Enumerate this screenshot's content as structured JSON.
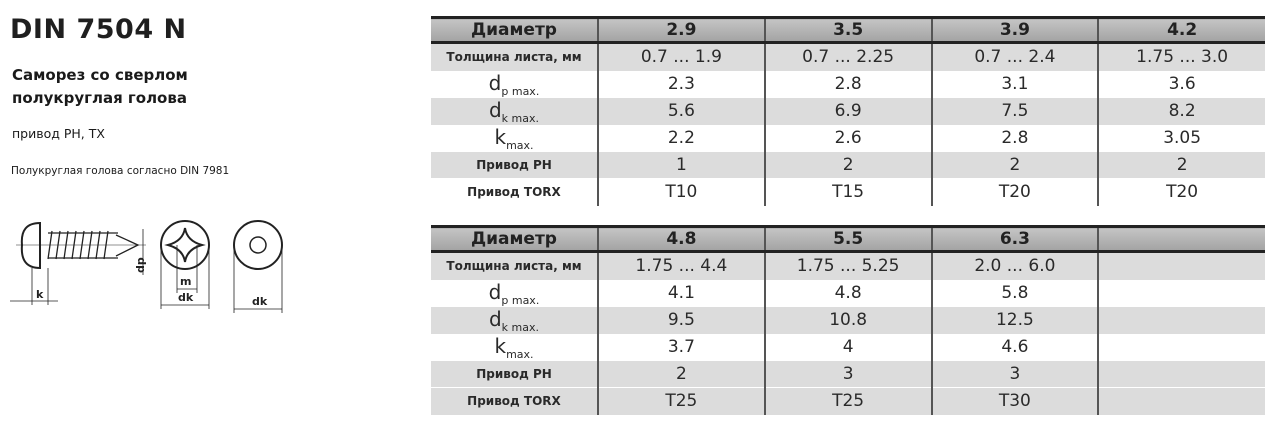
{
  "header": {
    "title": "DIN 7504 N",
    "subtitle": "Саморез со сверлом полукруглая голова",
    "drive": "привод PH, TX",
    "note": "Полукруглая голова согласно DIN 7981"
  },
  "drawing": {
    "labels": {
      "k": "k",
      "dp": "dp",
      "m": "m",
      "dk1": "dk",
      "dk2": "dk"
    }
  },
  "row_labels": {
    "diameter": "Диаметр",
    "sheet": "Толщина листа, мм",
    "dp": "d",
    "dp_sub": "p max.",
    "dk": "d",
    "dk_sub": "k max.",
    "k": "k",
    "k_sub": "max.",
    "ph": "Привод PH",
    "torx": "Привод TORX"
  },
  "tables": [
    {
      "columns": [
        {
          "d": "2.9",
          "sheet": "0.7  ...  1.9",
          "dp": "2.3",
          "dk": "5.6",
          "k": "2.2",
          "ph": "1",
          "torx": "T10"
        },
        {
          "d": "3.5",
          "sheet": "0.7  ...  2.25",
          "dp": "2.8",
          "dk": "6.9",
          "k": "2.6",
          "ph": "2",
          "torx": "T15"
        },
        {
          "d": "3.9",
          "sheet": "0.7  ...  2.4",
          "dp": "3.1",
          "dk": "7.5",
          "k": "2.8",
          "ph": "2",
          "torx": "T20"
        },
        {
          "d": "4.2",
          "sheet": "1.75  ...  3.0",
          "dp": "3.6",
          "dk": "8.2",
          "k": "3.05",
          "ph": "2",
          "torx": "T20"
        }
      ]
    },
    {
      "columns": [
        {
          "d": "4.8",
          "sheet": "1.75  ...  4.4",
          "dp": "4.1",
          "dk": "9.5",
          "k": "3.7",
          "ph": "2",
          "torx": "T25"
        },
        {
          "d": "5.5",
          "sheet": "1.75  ...  5.25",
          "dp": "4.8",
          "dk": "10.8",
          "k": "4",
          "ph": "3",
          "torx": "T25"
        },
        {
          "d": "6.3",
          "sheet": "2.0  ...  6.0",
          "dp": "5.8",
          "dk": "12.5",
          "k": "4.6",
          "ph": "3",
          "torx": "T30"
        },
        {
          "d": "",
          "sheet": "",
          "dp": "",
          "dk": "",
          "k": "",
          "ph": "",
          "torx": ""
        }
      ]
    }
  ]
}
